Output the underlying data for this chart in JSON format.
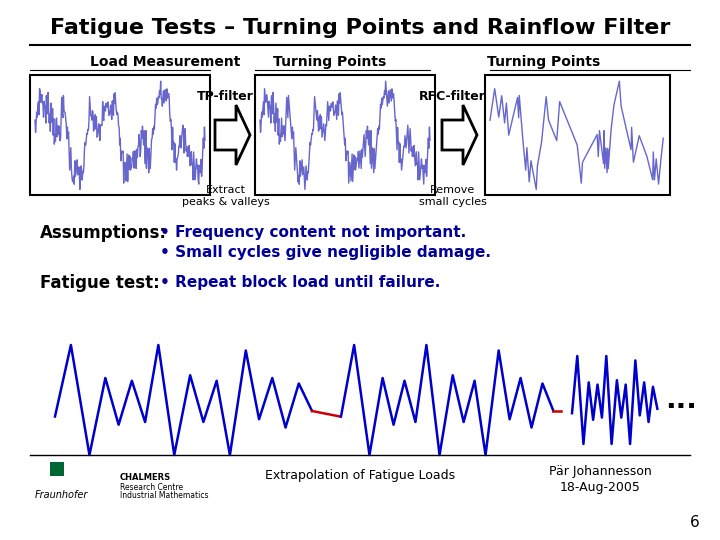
{
  "title": "Fatigue Tests – Turning Points and Rainflow Filter",
  "title_fontsize": 16,
  "col1_label": "Load Measurement",
  "col2_label": "Turning Points",
  "col3_label": "Turning Points",
  "tp_filter_label": "TP-filter",
  "rfc_filter_label": "RFC-filter",
  "extract_label": "Extract\npeaks & valleys",
  "remove_label": "Remove\nsmall cycles",
  "assumptions_label": "Assumptions:",
  "assumption1": "Frequency content not important.",
  "assumption2": "Small cycles give negligible damage.",
  "fatigue_label": "Fatigue test:",
  "fatigue_text": "Repeat block load until failure.",
  "footer_center": "Extrapolation of Fatigue Loads",
  "footer_right1": "Pär Johannesson",
  "footer_right2": "18-Aug-2005",
  "page_num": "6",
  "signal_color": "#6666cc",
  "signal_color2": "#0000cc",
  "red_color": "#cc0000",
  "text_blue": "#000099",
  "background": "#ffffff",
  "box_color": "#ffffff",
  "box_edge": "#000000"
}
